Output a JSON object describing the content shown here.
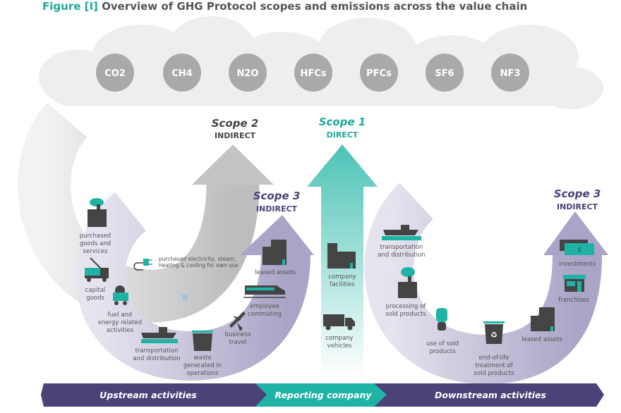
{
  "title": {
    "prefix": "Figure [I]",
    "text": " Overview of GHG Protocol scopes and emissions across the value chain"
  },
  "colors": {
    "teal": "#1fb3a5",
    "purple": "#4b4278",
    "lavender": "#c9c5dc",
    "gray": "#a9a9a9",
    "icon": "#444444"
  },
  "gases": [
    "CO2",
    "CH4",
    "N2O",
    "HFCs",
    "PFCs",
    "SF6",
    "NF3"
  ],
  "scope2": {
    "name": "Scope 2",
    "kind": "INDIRECT"
  },
  "scope1": {
    "name": "Scope 1",
    "kind": "DIRECT"
  },
  "scope3_up": {
    "name": "Scope 3",
    "kind": "INDIRECT"
  },
  "scope3_down": {
    "name": "Scope 3",
    "kind": "INDIRECT"
  },
  "scope2_item": [
    "purchased electricity, steam,",
    "heating & cooling for own use"
  ],
  "upstream_items": {
    "purchased_goods": [
      "purchased",
      "goods and",
      "services"
    ],
    "capital_goods": [
      "capital",
      "goods"
    ],
    "fuel_energy": [
      "fuel and",
      "energy related",
      "activities"
    ],
    "transport": [
      "transportation",
      "and distribution"
    ],
    "waste": [
      "waste",
      "generated in",
      "operations"
    ],
    "business_travel": [
      "business",
      "travel"
    ],
    "commuting": [
      "employee",
      "commuting"
    ],
    "leased_assets": [
      "leased assets"
    ]
  },
  "company_items": {
    "facilities": [
      "company",
      "facilities"
    ],
    "vehicles": [
      "company",
      "vehicles"
    ]
  },
  "downstream_items": {
    "transport": [
      "transportation",
      "and distribution"
    ],
    "processing": [
      "processing of",
      "sold products"
    ],
    "use": [
      "use of sold",
      "products"
    ],
    "end_of_life": [
      "end-of-life",
      "treatment of",
      "sold products"
    ],
    "leased_assets": [
      "leased assets"
    ],
    "franchises": [
      "franchises"
    ],
    "investments": [
      "investments"
    ]
  },
  "bottom_bar": {
    "upstream": "Upstream activities",
    "reporting": "Reporting company",
    "downstream": "Downstream activities"
  }
}
